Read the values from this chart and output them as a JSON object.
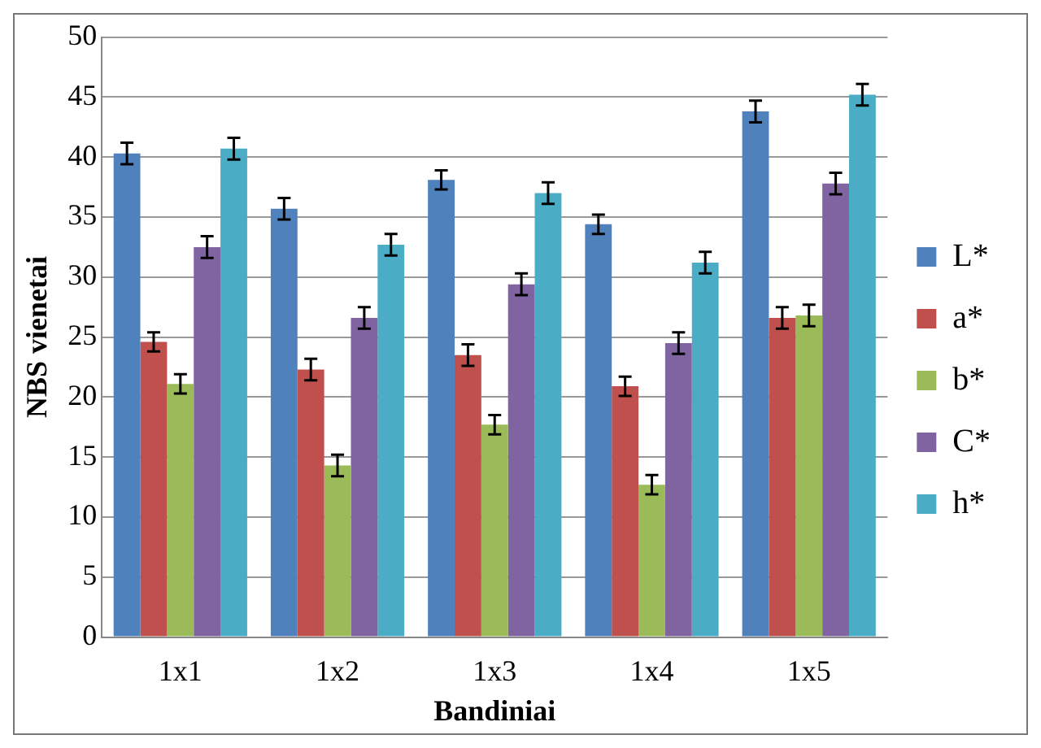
{
  "chart_data": {
    "type": "bar",
    "xlabel": "Bandiniai",
    "ylabel": "NBS vienetai",
    "categories": [
      "1x1",
      "1x2",
      "1x3",
      "1x4",
      "1x5"
    ],
    "series": [
      {
        "name": "L*",
        "color": "#4f81bd",
        "values": [
          40.3,
          35.7,
          38.1,
          34.4,
          43.8
        ],
        "errors": [
          0.9,
          0.9,
          0.8,
          0.8,
          0.9
        ]
      },
      {
        "name": "a*",
        "color": "#c0504d",
        "values": [
          24.6,
          22.3,
          23.5,
          20.9,
          26.6
        ],
        "errors": [
          0.8,
          0.9,
          0.9,
          0.8,
          0.9
        ]
      },
      {
        "name": "b*",
        "color": "#9bbb59",
        "values": [
          21.1,
          14.3,
          17.7,
          12.7,
          26.8
        ],
        "errors": [
          0.8,
          0.9,
          0.8,
          0.8,
          0.9
        ]
      },
      {
        "name": "C*",
        "color": "#8064a2",
        "values": [
          32.5,
          26.6,
          29.4,
          24.5,
          37.8
        ],
        "errors": [
          0.9,
          0.9,
          0.9,
          0.9,
          0.9
        ]
      },
      {
        "name": "h*",
        "color": "#4bacc6",
        "values": [
          40.7,
          32.7,
          37.0,
          31.2,
          45.2
        ],
        "errors": [
          0.9,
          0.9,
          0.9,
          0.9,
          0.9
        ]
      }
    ],
    "ylim": [
      0,
      50
    ],
    "yticks": [
      0,
      5,
      10,
      15,
      20,
      25,
      30,
      35,
      40,
      45,
      50
    ],
    "grid": "y",
    "legend": "right"
  }
}
